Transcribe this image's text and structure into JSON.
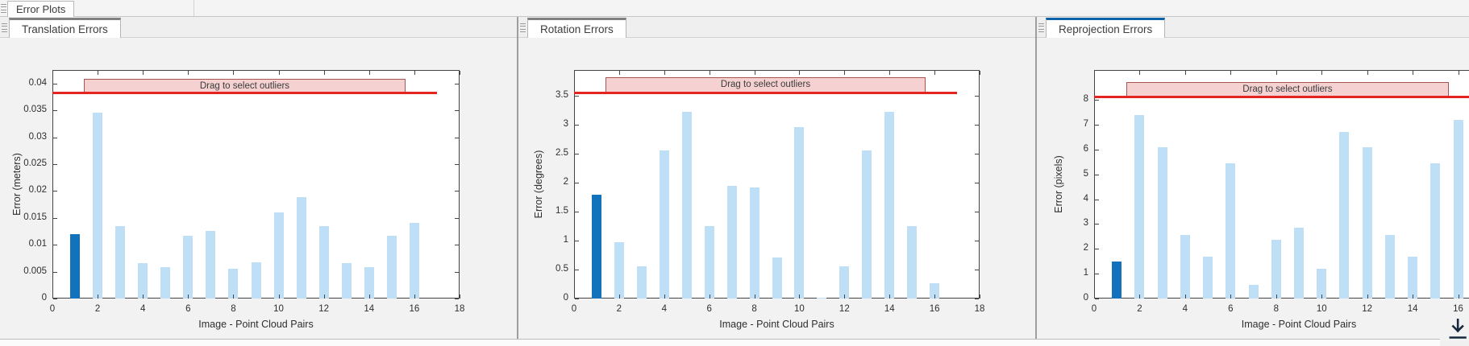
{
  "figure_tab": {
    "label": "Error Plots"
  },
  "band_label": "Drag to select outliers",
  "colors": {
    "bar_light": "#bedff6",
    "bar_selected": "#1372bc",
    "threshold_red": "#e32420",
    "band_fill": "#f5d2d1",
    "band_border": "#a8544f",
    "active_tab_accent": "#0b62a8",
    "inactive_tab_accent": "#808080"
  },
  "icons": {
    "grip": "grip-icon",
    "export": "export-download-icon"
  },
  "chart_data": [
    {
      "type": "bar",
      "tab_label": "Translation Errors",
      "xlabel": "Image - Point Cloud Pairs",
      "ylabel": "Error (meters)",
      "x": [
        1,
        2,
        3,
        4,
        5,
        6,
        7,
        8,
        9,
        10,
        11,
        12,
        13,
        14,
        15,
        16
      ],
      "values": [
        0.012,
        0.0345,
        0.0135,
        0.0066,
        0.0058,
        0.0116,
        0.0126,
        0.0056,
        0.0067,
        0.016,
        0.0188,
        0.0135,
        0.0066,
        0.0058,
        0.0116,
        0.014
      ],
      "selected_bar": 1,
      "threshold": 0.0383,
      "threshold_x": [
        0,
        17
      ],
      "band": {
        "label": "Drag to select outliers",
        "x": [
          1.4,
          15.6
        ],
        "y": [
          0.0383,
          0.0408
        ]
      },
      "xticks": [
        "0",
        "2",
        "4",
        "6",
        "8",
        "10",
        "12",
        "14",
        "16",
        "18"
      ],
      "yticks": [
        "0",
        "0.005",
        "0.01",
        "0.015",
        "0.02",
        "0.025",
        "0.03",
        "0.035",
        "0.04"
      ],
      "xlim": [
        0,
        18
      ],
      "ylim": [
        0,
        0.0425
      ],
      "grid": false,
      "legend": null
    },
    {
      "type": "bar",
      "tab_label": "Rotation Errors",
      "xlabel": "Image - Point Cloud Pairs",
      "ylabel": "Error (degrees)",
      "x": [
        1,
        2,
        3,
        4,
        5,
        6,
        7,
        8,
        9,
        10,
        11,
        12,
        13,
        14,
        15,
        16
      ],
      "values": [
        1.8,
        0.98,
        0.56,
        2.56,
        3.23,
        1.25,
        1.95,
        1.92,
        0.71,
        2.96,
        0.02,
        0.56,
        2.56,
        3.22,
        1.25,
        0.27
      ],
      "selected_bar": 1,
      "threshold": 3.56,
      "threshold_x": [
        0,
        17
      ],
      "band": {
        "label": "Drag to select outliers",
        "x": [
          1.4,
          15.6
        ],
        "y": [
          3.56,
          3.83
        ]
      },
      "xticks": [
        "0",
        "2",
        "4",
        "6",
        "8",
        "10",
        "12",
        "14",
        "16",
        "18"
      ],
      "yticks": [
        "0",
        "0.5",
        "1",
        "1.5",
        "2",
        "2.5",
        "3",
        "3.5"
      ],
      "xlim": [
        0,
        18
      ],
      "ylim": [
        0,
        3.95
      ],
      "grid": false,
      "legend": null
    },
    {
      "type": "bar",
      "tab_label": "Reprojection Errors",
      "xlabel": "Image - Point Cloud Pairs",
      "ylabel": "Error (pixels)",
      "x": [
        1,
        2,
        3,
        4,
        5,
        6,
        7,
        8,
        9,
        10,
        11,
        12,
        13,
        14,
        15,
        16
      ],
      "values": [
        1.5,
        7.4,
        6.1,
        2.55,
        1.7,
        5.45,
        0.55,
        2.35,
        2.85,
        1.2,
        6.7,
        6.1,
        2.55,
        1.7,
        5.45,
        7.2
      ],
      "selected_bar": 1,
      "threshold": 8.12,
      "threshold_x": [
        0,
        17
      ],
      "band": {
        "label": "Drag to select outliers",
        "x": [
          1.4,
          15.6
        ],
        "y": [
          8.12,
          8.72
        ]
      },
      "xticks": [
        "0",
        "2",
        "4",
        "6",
        "8",
        "10",
        "12",
        "14",
        "16",
        "18"
      ],
      "yticks": [
        "0",
        "1",
        "2",
        "3",
        "4",
        "5",
        "6",
        "7",
        "8"
      ],
      "xlim": [
        0,
        18
      ],
      "ylim": [
        0,
        9.2
      ],
      "grid": false,
      "legend": null
    }
  ]
}
